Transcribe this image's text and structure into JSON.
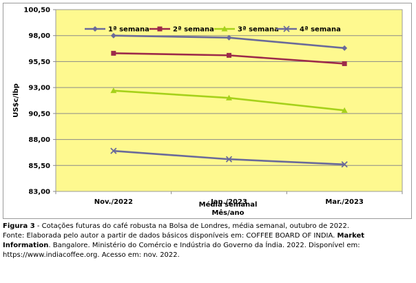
{
  "chart_data": {
    "type": "line",
    "categories": [
      "Nov./2022",
      "Jan./2023",
      "Mar./2023"
    ],
    "series": [
      {
        "name": "1ª semana",
        "values": [
          98.0,
          97.8,
          96.8
        ],
        "color": "#6a6a9a",
        "marker": "diamond"
      },
      {
        "name": "2ª semana",
        "values": [
          96.3,
          96.1,
          95.3
        ],
        "color": "#9c2a4a",
        "marker": "square"
      },
      {
        "name": "3ª semana",
        "values": [
          92.7,
          92.0,
          90.8
        ],
        "color": "#a6d11a",
        "marker": "triangle"
      },
      {
        "name": "4ª semana",
        "values": [
          86.9,
          86.1,
          85.6
        ],
        "color": "#6a6a9a",
        "marker": "x"
      }
    ],
    "ylabel": "US$c/lbp",
    "xlabel_line1": "Média semanal",
    "xlabel_line2": "Mês/ano",
    "ylim": [
      83.0,
      100.5
    ],
    "yticks": [
      "100,50",
      "98,00",
      "95,50",
      "93,00",
      "90,50",
      "88,00",
      "85,50",
      "83,00"
    ],
    "grid": true,
    "legend": "top-left",
    "plot_background": "#fef98f"
  },
  "caption": {
    "figure_label": "Figura 3",
    "figure_text": " - Cotações futuras do café robusta na Bolsa de Londres, média semanal, outubro de 2022.",
    "source_prefix": "Fonte: Elaborada pelo autor a partir de dados básicos disponíveis em: COFFEE BOARD OF INDIA. ",
    "source_bold": "Market Information",
    "source_suffix": ". Bangalore. Ministério do Comércio e Indústria do Governo da Índia. 2022. Disponível em: https://www.indiacoffee.org. Acesso em: nov. 2022."
  }
}
